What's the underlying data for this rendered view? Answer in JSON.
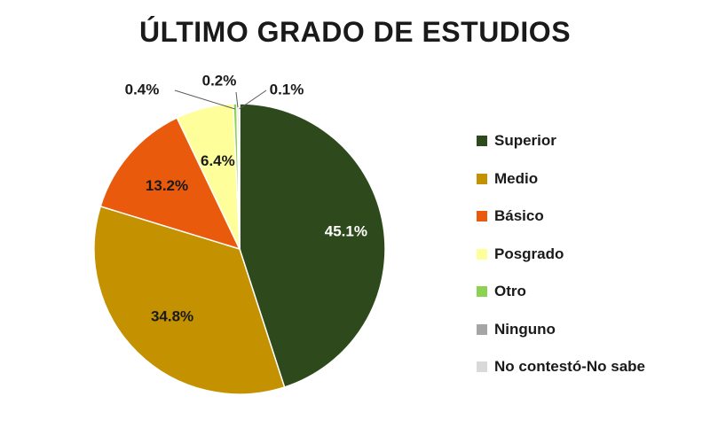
{
  "chart_data": {
    "type": "pie",
    "title": "ÚLTIMO GRADO DE ESTUDIOS",
    "categories": [
      "Superior",
      "Medio",
      "Básico",
      "Posgrado",
      "Otro",
      "Ninguno",
      "No contestó-No sabe"
    ],
    "values": [
      45.1,
      34.8,
      13.2,
      6.4,
      0.4,
      0.2,
      0.1
    ],
    "data_labels": [
      "45.1%",
      "34.8%",
      "13.2%",
      "6.4%",
      "0.4%",
      "0.2%",
      "0.1%"
    ],
    "colors": [
      "#2e4a1d",
      "#c49100",
      "#ea5a0c",
      "#fefe9a",
      "#8ed254",
      "#a5a5a5",
      "#d9d9d9"
    ],
    "label_colors": [
      "#ffffff",
      "#1a1a1a",
      "#1a1a1a",
      "#1a1a1a",
      "#1a1a1a",
      "#1a1a1a",
      "#1a1a1a"
    ],
    "legend_position": "right"
  }
}
